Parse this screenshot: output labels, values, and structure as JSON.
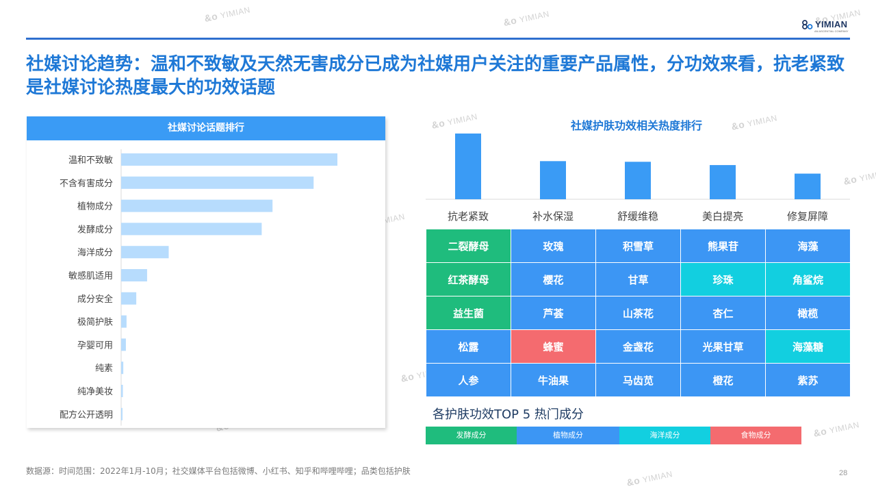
{
  "brand": {
    "logo_text": "YIMIAN",
    "logo_sub": "AN ASCENTIAL COMPANY",
    "watermark": "YIMIAN"
  },
  "title": "社媒讨论趋势：温和不致敏及天然无害成分已成为社媒用户关注的重要产品属性，分功效来看，抗老紧致是社媒讨论热度最大的功效话题",
  "colors": {
    "accent": "#1e78d6",
    "header_bar": "#3a9bf5",
    "ferment": "#1fbc7d",
    "plant": "#3c96f4",
    "ocean": "#12cfe0",
    "food": "#f46b6f",
    "hbar": "#b7dcfd",
    "vbar": "#3a9bf5"
  },
  "chart_data": [
    {
      "type": "bar",
      "orientation": "horizontal",
      "title": "社媒讨论话题排行",
      "categories": [
        "温和不致敏",
        "不含有害成分",
        "植物成分",
        "发酵成分",
        "海洋成分",
        "敏感肌适用",
        "成分安全",
        "极简护肤",
        "孕婴可用",
        "纯素",
        "纯净美妆",
        "配方公开透明"
      ],
      "values": [
        100,
        89,
        70,
        65,
        22,
        12,
        7,
        2.5,
        2.2,
        1.0,
        0.8,
        0.5
      ],
      "grid": false,
      "ylim": [
        0,
        100
      ]
    },
    {
      "type": "bar",
      "title": "社媒护肤功效相关热度排行",
      "categories": [
        "抗老紧致",
        "补水保湿",
        "舒缓维稳",
        "美白提亮",
        "修复屏障"
      ],
      "values": [
        100,
        58,
        57,
        52,
        39
      ],
      "grid": false,
      "ylim": [
        0,
        100
      ]
    },
    {
      "type": "table",
      "title": "各护肤功效TOP 5 热门成分",
      "columns": [
        "抗老紧致",
        "补水保湿",
        "舒缓维稳",
        "美白提亮",
        "修复屏障"
      ],
      "rows": [
        [
          {
            "text": "二裂酵母",
            "cat": "ferment"
          },
          {
            "text": "玫瑰",
            "cat": "plant"
          },
          {
            "text": "积雪草",
            "cat": "plant"
          },
          {
            "text": "熊果苷",
            "cat": "plant"
          },
          {
            "text": "海藻",
            "cat": "plant"
          }
        ],
        [
          {
            "text": "红茶酵母",
            "cat": "ferment"
          },
          {
            "text": "樱花",
            "cat": "plant"
          },
          {
            "text": "甘草",
            "cat": "plant"
          },
          {
            "text": "珍珠",
            "cat": "ocean"
          },
          {
            "text": "角鲨烷",
            "cat": "ocean"
          }
        ],
        [
          {
            "text": "益生菌",
            "cat": "ferment"
          },
          {
            "text": "芦荟",
            "cat": "plant"
          },
          {
            "text": "山茶花",
            "cat": "plant"
          },
          {
            "text": "杏仁",
            "cat": "plant"
          },
          {
            "text": "橄榄",
            "cat": "plant"
          }
        ],
        [
          {
            "text": "松露",
            "cat": "plant"
          },
          {
            "text": "蜂蜜",
            "cat": "food"
          },
          {
            "text": "金盏花",
            "cat": "plant"
          },
          {
            "text": "光果甘草",
            "cat": "plant"
          },
          {
            "text": "海藻糖",
            "cat": "ocean"
          }
        ],
        [
          {
            "text": "人参",
            "cat": "plant"
          },
          {
            "text": "牛油果",
            "cat": "plant"
          },
          {
            "text": "马齿苋",
            "cat": "plant"
          },
          {
            "text": "橙花",
            "cat": "plant"
          },
          {
            "text": "紫苏",
            "cat": "plant"
          }
        ]
      ],
      "legend": [
        {
          "label": "发酵成分",
          "cat": "ferment"
        },
        {
          "label": "植物成分",
          "cat": "plant"
        },
        {
          "label": "海洋成分",
          "cat": "ocean"
        },
        {
          "label": "食物成分",
          "cat": "food"
        }
      ]
    }
  ],
  "footer": {
    "source": "数据源：时间范围：2022年1月-10月；社交媒体平台包括微博、小红书、知乎和哔哩哔哩；品类包括护肤",
    "page": "28"
  }
}
